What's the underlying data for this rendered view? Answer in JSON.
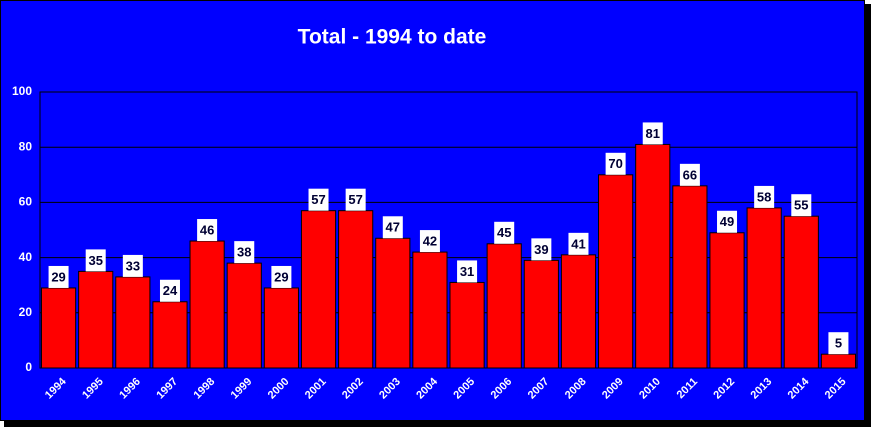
{
  "chart_data": {
    "type": "bar",
    "title": "Total - 1994 to date",
    "categories": [
      "1994",
      "1995",
      "1996",
      "1997",
      "1998",
      "1999",
      "2000",
      "2001",
      "2002",
      "2003",
      "2004",
      "2005",
      "2006",
      "2007",
      "2008",
      "2009",
      "2010",
      "2011",
      "2012",
      "2013",
      "2014",
      "2015"
    ],
    "values": [
      29,
      35,
      33,
      24,
      46,
      38,
      29,
      57,
      57,
      47,
      42,
      31,
      45,
      39,
      41,
      70,
      81,
      66,
      49,
      58,
      55,
      5
    ],
    "color": "#ff0000",
    "ylim": [
      0,
      100
    ],
    "yticks": [
      0,
      20,
      40,
      60,
      80,
      100
    ],
    "grid": true
  }
}
